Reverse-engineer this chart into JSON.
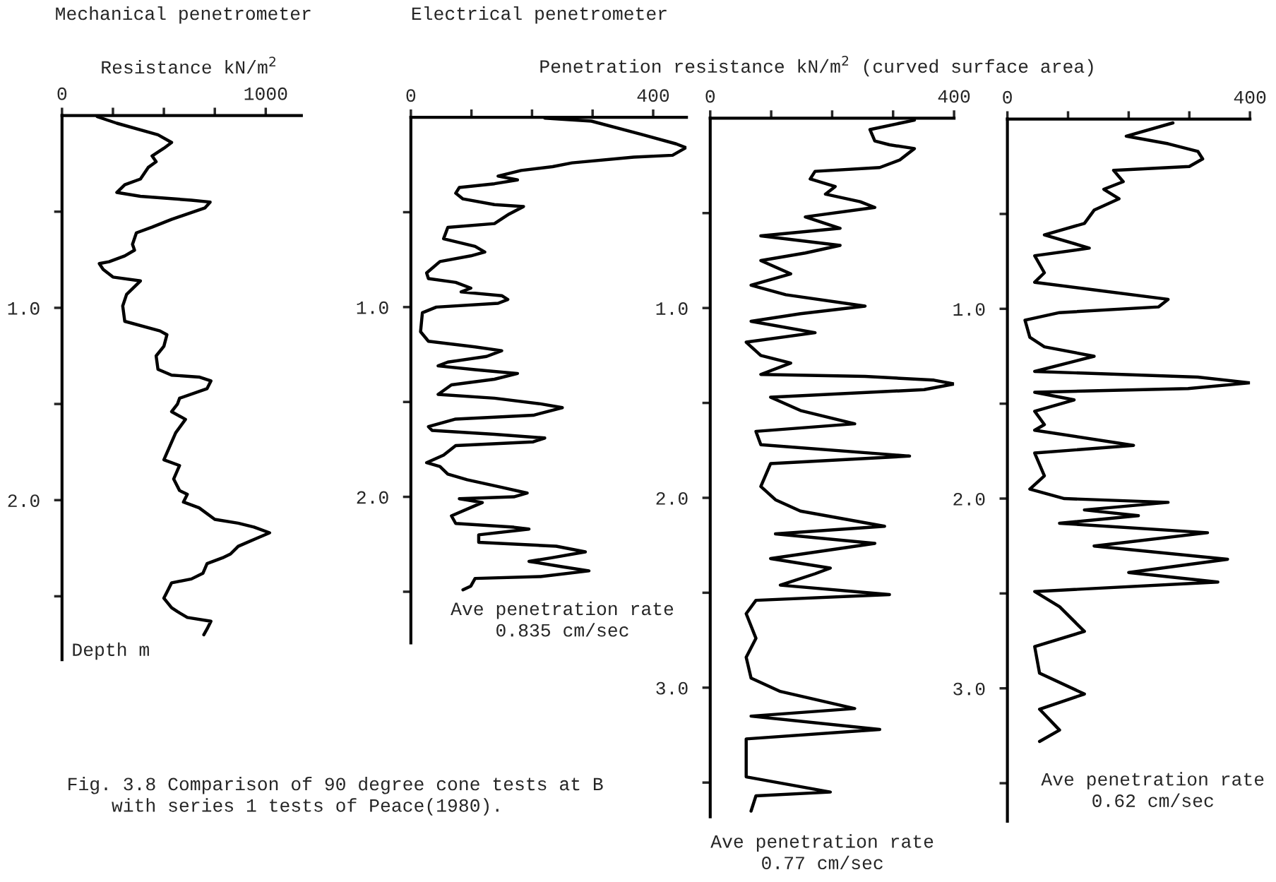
{
  "chart_data": [
    {
      "type": "line",
      "orientation": "horizontal",
      "title": "Mechanical penetrometer",
      "xlabel": "Resistance kN/m$^{2}$",
      "ylabel": "Depth m",
      "xlim": [
        0,
        1175
      ],
      "xticks": [
        0,
        {
          "value": 250,
          "label": null
        },
        {
          "value": 500,
          "label": null
        },
        {
          "value": 750,
          "label": null
        },
        1000
      ],
      "ylim": [
        2.83,
        0
      ],
      "yticks": [
        {
          "value": 0.5,
          "label": null
        },
        {
          "value": 1.0,
          "label": "1.0"
        },
        {
          "value": 1.5,
          "label": null
        },
        {
          "value": 2.0,
          "label": "2.0"
        },
        {
          "value": 2.5,
          "label": null
        }
      ],
      "marker": "none",
      "line_style": "solid",
      "grid": false,
      "legend": false,
      "annotations": [
        "Fig. 3.8 Comparison of 90 degree cone tests at B\n    with series 1 tests of Peace(1980)."
      ],
      "series": [
        {
          "color": "#000000",
          "x": [
            0.006,
            0.04,
            0.1,
            0.14,
            0.17,
            0.21,
            0.24,
            0.27,
            0.33,
            0.36,
            0.4,
            0.42,
            0.44,
            0.45,
            0.48,
            0.54,
            0.58,
            0.61,
            0.67,
            0.7,
            0.73,
            0.76,
            0.77,
            0.8,
            0.84,
            0.86,
            0.93,
            0.99,
            1.07,
            1.12,
            1.14,
            1.2,
            1.25,
            1.32,
            1.35,
            1.36,
            1.38,
            1.42,
            1.47,
            1.5,
            1.54,
            1.58,
            1.65,
            1.79,
            1.82,
            1.89,
            1.95,
            1.97,
            2.01,
            2.04,
            2.1,
            2.12,
            2.14,
            2.17,
            2.2,
            2.24,
            2.28,
            2.3,
            2.33,
            2.38,
            2.41,
            2.43,
            2.47,
            2.51,
            2.56,
            2.58,
            2.61,
            2.63,
            2.67,
            2.7
          ],
          "values": [
            173,
            269,
            471,
            538,
            500,
            442,
            462,
            423,
            385,
            308,
            269,
            385,
            635,
            727,
            702,
            538,
            442,
            365,
            346,
            356,
            308,
            231,
            183,
            202,
            250,
            385,
            317,
            298,
            308,
            481,
            515,
            500,
            462,
            471,
            538,
            673,
            731,
            712,
            577,
            567,
            538,
            606,
            558,
            500,
            577,
            548,
            577,
            615,
            596,
            673,
            750,
            865,
            942,
            1019,
            952,
            865,
            827,
            788,
            712,
            692,
            635,
            538,
            519,
            500,
            538,
            567,
            615,
            731,
            712,
            696
          ]
        }
      ]
    },
    {
      "type": "line",
      "orientation": "horizontal",
      "title": "Electrical penetrometer",
      "xlim": [
        0,
        455
      ],
      "xticks": [
        0,
        {
          "value": 100,
          "label": null
        },
        {
          "value": 200,
          "label": null
        },
        {
          "value": 300,
          "label": null
        },
        400
      ],
      "ylim": [
        2.77,
        0
      ],
      "yticks": [
        {
          "value": 0.5,
          "label": null
        },
        {
          "value": 1.0,
          "label": "1.0"
        },
        {
          "value": 1.5,
          "label": null
        },
        {
          "value": 2.0,
          "label": "2.0"
        },
        {
          "value": 2.5,
          "label": null
        }
      ],
      "marker": "none",
      "line_style": "solid",
      "grid": false,
      "legend": false,
      "annotations": [
        "Ave penetration rate\n0.835 cm/sec"
      ],
      "series": [
        {
          "color": "#000000",
          "x": [
            0.004,
            0.02,
            0.09,
            0.14,
            0.16,
            0.2,
            0.21,
            0.24,
            0.26,
            0.28,
            0.31,
            0.33,
            0.35,
            0.37,
            0.4,
            0.43,
            0.46,
            0.47,
            0.51,
            0.56,
            0.58,
            0.64,
            0.68,
            0.71,
            0.73,
            0.76,
            0.82,
            0.85,
            0.87,
            0.9,
            0.92,
            0.94,
            0.96,
            0.98,
            1.0,
            1.03,
            1.13,
            1.18,
            1.21,
            1.23,
            1.26,
            1.29,
            1.31,
            1.33,
            1.35,
            1.38,
            1.41,
            1.46,
            1.48,
            1.51,
            1.53,
            1.57,
            1.59,
            1.63,
            1.65,
            1.67,
            1.69,
            1.71,
            1.73,
            1.78,
            1.82,
            1.84,
            1.88,
            1.91,
            1.95,
            1.98,
            2.0,
            2.01,
            2.03,
            2.1,
            2.14,
            2.16,
            2.17,
            2.2,
            2.24,
            2.26,
            2.29,
            2.32,
            2.34,
            2.37,
            2.39,
            2.42,
            2.43,
            2.47,
            2.49
          ],
          "values": [
            221,
            298,
            381,
            438,
            454,
            432,
            368,
            266,
            234,
            182,
            144,
            176,
            138,
            80,
            74,
            86,
            138,
            186,
            162,
            138,
            61,
            54,
            106,
            122,
            99,
            48,
            26,
            29,
            74,
            99,
            83,
            150,
            160,
            144,
            42,
            19,
            16,
            29,
            106,
            150,
            125,
            61,
            45,
            106,
            176,
            138,
            67,
            45,
            138,
            214,
            250,
            202,
            74,
            29,
            35,
            138,
            221,
            202,
            74,
            54,
            26,
            48,
            61,
            93,
            150,
            192,
            170,
            80,
            118,
            67,
            74,
            170,
            195,
            112,
            112,
            240,
            288,
            234,
            195,
            253,
            294,
            214,
            106,
            99,
            86
          ]
        }
      ]
    },
    {
      "type": "line",
      "orientation": "horizontal",
      "xlabel": "Penetration resistance kN/m$^{2}$ (curved surface area)",
      "xlim": [
        0,
        400
      ],
      "xticks": [
        0,
        {
          "value": 100,
          "label": null
        },
        {
          "value": 200,
          "label": null
        },
        {
          "value": 300,
          "label": null
        },
        400
      ],
      "ylim": [
        3.68,
        0
      ],
      "yticks": [
        {
          "value": 0.5,
          "label": null
        },
        {
          "value": 1.0,
          "label": "1.0"
        },
        {
          "value": 1.5,
          "label": null
        },
        {
          "value": 2.0,
          "label": "2.0"
        },
        {
          "value": 2.5,
          "label": null
        },
        {
          "value": 3.0,
          "label": "3.0"
        },
        {
          "value": 3.5,
          "label": null
        }
      ],
      "marker": "none",
      "line_style": "solid",
      "grid": false,
      "legend": false,
      "annotations": [
        "Ave penetration rate\n0.77 cm/sec"
      ],
      "series": [
        {
          "color": "#000000",
          "x": [
            0.01,
            0.06,
            0.12,
            0.14,
            0.16,
            0.22,
            0.26,
            0.28,
            0.32,
            0.36,
            0.4,
            0.44,
            0.47,
            0.52,
            0.58,
            0.62,
            0.67,
            0.71,
            0.75,
            0.82,
            0.88,
            0.93,
            0.99,
            1.03,
            1.07,
            1.13,
            1.18,
            1.25,
            1.29,
            1.35,
            1.36,
            1.38,
            1.4,
            1.43,
            1.47,
            1.54,
            1.61,
            1.65,
            1.72,
            1.78,
            1.82,
            1.94,
            2.01,
            2.07,
            2.15,
            2.19,
            2.24,
            2.32,
            2.37,
            2.4,
            2.46,
            2.51,
            2.54,
            2.61,
            2.74,
            2.84,
            2.95,
            3.02,
            3.11,
            3.15,
            3.22,
            3.27,
            3.47,
            3.55,
            3.57,
            3.65
          ],
          "values": [
            335,
            262,
            270,
            294,
            335,
            311,
            278,
            172,
            164,
            205,
            189,
            246,
            270,
            156,
            213,
            83,
            213,
            156,
            83,
            132,
            67,
            124,
            254,
            148,
            67,
            172,
            59,
            83,
            132,
            83,
            254,
            367,
            400,
            351,
            99,
            148,
            237,
            75,
            83,
            327,
            99,
            83,
            107,
            148,
            286,
            107,
            270,
            99,
            197,
            172,
            115,
            294,
            75,
            59,
            75,
            59,
            67,
            115,
            237,
            67,
            278,
            59,
            59,
            197,
            75,
            67
          ]
        }
      ]
    },
    {
      "type": "line",
      "orientation": "horizontal",
      "xlim": [
        0,
        400
      ],
      "xticks": [
        0,
        {
          "value": 100,
          "label": null
        },
        {
          "value": 200,
          "label": null
        },
        {
          "value": 300,
          "label": null
        },
        400
      ],
      "ylim": [
        3.7,
        0
      ],
      "yticks": [
        {
          "value": 0.5,
          "label": null
        },
        {
          "value": 1.0,
          "label": "1.0"
        },
        {
          "value": 1.5,
          "label": null
        },
        {
          "value": 2.0,
          "label": "2.0"
        },
        {
          "value": 2.5,
          "label": null
        },
        {
          "value": 3.0,
          "label": "3.0"
        },
        {
          "value": 3.5,
          "label": null
        }
      ],
      "marker": "none",
      "line_style": "solid",
      "grid": false,
      "legend": false,
      "annotations": [
        "Ave penetration rate\n0.62 cm/sec"
      ],
      "series": [
        {
          "color": "#000000",
          "x": [
            0.02,
            0.09,
            0.13,
            0.17,
            0.21,
            0.25,
            0.27,
            0.33,
            0.37,
            0.42,
            0.48,
            0.55,
            0.61,
            0.68,
            0.72,
            0.81,
            0.86,
            0.9,
            0.95,
            0.99,
            1.02,
            1.06,
            1.15,
            1.2,
            1.25,
            1.33,
            1.36,
            1.39,
            1.42,
            1.44,
            1.48,
            1.54,
            1.61,
            1.64,
            1.72,
            1.76,
            1.88,
            1.95,
            2.0,
            2.02,
            2.06,
            2.09,
            2.13,
            2.18,
            2.25,
            2.32,
            2.39,
            2.44,
            2.49,
            2.57,
            2.7,
            2.78,
            2.92,
            3.03,
            3.11,
            3.22,
            3.28
          ],
          "values": [
            273,
            196,
            265,
            314,
            322,
            300,
            175,
            191,
            159,
            184,
            143,
            127,
            61,
            135,
            45,
            61,
            45,
            143,
            265,
            249,
            86,
            29,
            37,
            61,
            143,
            45,
            314,
            400,
            298,
            45,
            110,
            45,
            61,
            45,
            208,
            45,
            61,
            37,
            94,
            265,
            127,
            216,
            86,
            330,
            143,
            363,
            200,
            347,
            45,
            86,
            127,
            45,
            53,
            127,
            53,
            86,
            53
          ]
        }
      ]
    }
  ]
}
